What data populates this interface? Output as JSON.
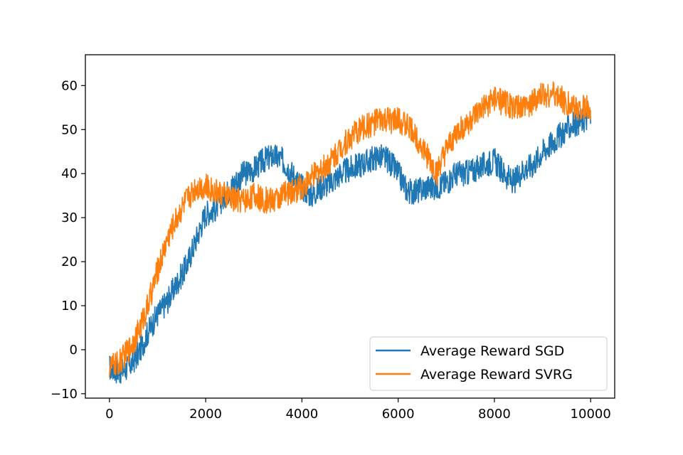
{
  "chart_data": {
    "type": "line",
    "title": "",
    "xlabel": "",
    "ylabel": "",
    "xlim": [
      -500,
      10500
    ],
    "ylim": [
      -11,
      67
    ],
    "xticks": [
      0,
      2000,
      4000,
      6000,
      8000,
      10000
    ],
    "xtick_labels": [
      "0",
      "2000",
      "4000",
      "6000",
      "8000",
      "10000"
    ],
    "yticks": [
      -10,
      0,
      10,
      20,
      30,
      40,
      50,
      60
    ],
    "ytick_labels": [
      "−10",
      "0",
      "10",
      "20",
      "30",
      "40",
      "50",
      "60"
    ],
    "grid": false,
    "legend_position": "lower-right",
    "series": [
      {
        "name": "Average Reward SGD",
        "color": "#1f77b4",
        "x": [
          0,
          200,
          400,
          600,
          800,
          1000,
          1200,
          1400,
          1600,
          1800,
          2000,
          2200,
          2400,
          2600,
          2800,
          3000,
          3200,
          3400,
          3600,
          3800,
          4000,
          4200,
          4400,
          4600,
          4800,
          5000,
          5200,
          5400,
          5600,
          5800,
          6000,
          6200,
          6400,
          6600,
          6800,
          7000,
          7200,
          7400,
          7600,
          7800,
          8000,
          8200,
          8400,
          8600,
          8800,
          9000,
          9200,
          9400,
          9600,
          9800,
          10000
        ],
        "y": [
          -4,
          -5,
          -4,
          -1,
          4,
          8,
          11,
          15,
          19,
          25,
          31,
          32,
          35,
          38,
          40,
          41,
          43,
          44,
          43,
          40,
          37,
          35,
          37,
          38,
          40,
          41,
          42,
          43,
          44,
          43,
          40,
          36,
          36,
          37,
          37,
          38,
          40,
          40,
          41,
          42,
          43,
          40,
          38,
          41,
          42,
          45,
          47,
          49,
          51,
          52,
          53
        ],
        "band": 3
      },
      {
        "name": "Average Reward SVRG",
        "color": "#ff7f0e",
        "x": [
          0,
          200,
          400,
          600,
          800,
          1000,
          1200,
          1400,
          1600,
          1800,
          2000,
          2200,
          2400,
          2600,
          2800,
          3000,
          3200,
          3400,
          3600,
          3800,
          4000,
          4200,
          4400,
          4600,
          4800,
          5000,
          5200,
          5400,
          5600,
          5800,
          6000,
          6200,
          6400,
          6600,
          6800,
          7000,
          7200,
          7400,
          7600,
          7800,
          8000,
          8200,
          8400,
          8600,
          8800,
          9000,
          9200,
          9400,
          9600,
          9800,
          10000
        ],
        "y": [
          -4,
          -3,
          0,
          4,
          10,
          18,
          25,
          30,
          34,
          37,
          37,
          36,
          35,
          34,
          34,
          35,
          34,
          34,
          35,
          36,
          37,
          39,
          41,
          43,
          46,
          48,
          50,
          51,
          52,
          52,
          52,
          51,
          48,
          44,
          40,
          45,
          49,
          51,
          53,
          55,
          57,
          56,
          55,
          55,
          56,
          58,
          58,
          57,
          55,
          55,
          55
        ],
        "band": 3
      }
    ]
  }
}
